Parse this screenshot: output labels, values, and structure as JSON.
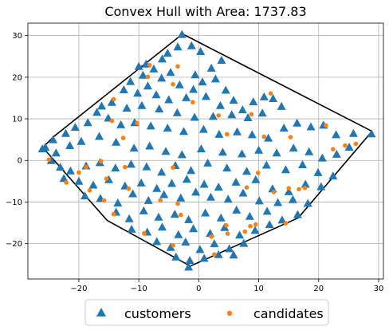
{
  "chart_data": {
    "type": "scatter",
    "title": "Convex Hull with Area: 1737.83",
    "xlabel": "",
    "ylabel": "",
    "xlim": [
      -28.5,
      30.8
    ],
    "ylim": [
      -28.5,
      33.0
    ],
    "xticks": [
      -20,
      -10,
      0,
      10,
      20,
      30
    ],
    "yticks": [
      -20,
      -10,
      0,
      10,
      20,
      30
    ],
    "grid": true,
    "legend_position": "bottom-center",
    "colors": {
      "customers": "#1f77b4",
      "candidates": "#ff7f0e",
      "hull": "#000000",
      "grid": "#b0b0b0"
    },
    "series": [
      {
        "name": "customers",
        "marker": "triangle",
        "points": [
          [
            -2.8,
            30.3
          ],
          [
            -5.2,
            25.8
          ],
          [
            -3.5,
            27.3
          ],
          [
            -1.2,
            27.6
          ],
          [
            0.3,
            26.2
          ],
          [
            -6.1,
            24.4
          ],
          [
            -8.8,
            23.2
          ],
          [
            -10.0,
            22.6
          ],
          [
            -7.5,
            22.0
          ],
          [
            -4.7,
            21.2
          ],
          [
            -9.3,
            20.5
          ],
          [
            -6.2,
            19.8
          ],
          [
            -0.6,
            20.6
          ],
          [
            2.1,
            22.2
          ],
          [
            3.8,
            24.1
          ],
          [
            -11.4,
            19.0
          ],
          [
            -8.5,
            17.9
          ],
          [
            -3.2,
            18.2
          ],
          [
            -0.9,
            17.1
          ],
          [
            0.6,
            18.9
          ],
          [
            2.8,
            19.6
          ],
          [
            4.5,
            16.9
          ],
          [
            -12.5,
            17.0
          ],
          [
            -10.2,
            16.2
          ],
          [
            -7.1,
            15.8
          ],
          [
            -5.0,
            14.6
          ],
          [
            -2.1,
            15.1
          ],
          [
            1.2,
            15.4
          ],
          [
            3.6,
            13.2
          ],
          [
            5.8,
            14.5
          ],
          [
            7.3,
            12.2
          ],
          [
            9.1,
            14.1
          ],
          [
            10.9,
            15.3
          ],
          [
            12.4,
            14.9
          ],
          [
            13.8,
            13.0
          ],
          [
            10.6,
            11.4
          ],
          [
            8.2,
            10.3
          ],
          [
            5.5,
            11.0
          ],
          [
            2.4,
            10.6
          ],
          [
            -0.7,
            10.4
          ],
          [
            -3.6,
            11.5
          ],
          [
            -6.6,
            12.4
          ],
          [
            -9.5,
            13.2
          ],
          [
            -12.0,
            12.6
          ],
          [
            -14.5,
            14.0
          ],
          [
            -16.2,
            13.1
          ],
          [
            -17.0,
            11.6
          ],
          [
            -15.1,
            10.2
          ],
          [
            -13.0,
            8.6
          ],
          [
            -10.7,
            9.1
          ],
          [
            -8.0,
            8.3
          ],
          [
            -5.2,
            7.8
          ],
          [
            -2.5,
            7.0
          ],
          [
            0.8,
            7.5
          ],
          [
            3.4,
            6.3
          ],
          [
            6.4,
            6.9
          ],
          [
            8.9,
            6.2
          ],
          [
            11.6,
            5.4
          ],
          [
            14.2,
            7.8
          ],
          [
            16.4,
            9.0
          ],
          [
            18.7,
            8.1
          ],
          [
            20.8,
            8.5
          ],
          [
            22.9,
            6.2
          ],
          [
            25.8,
            6.5
          ],
          [
            28.8,
            6.4
          ],
          [
            -18.5,
            9.1
          ],
          [
            -20.6,
            8.0
          ],
          [
            -22.2,
            6.5
          ],
          [
            -24.3,
            5.0
          ],
          [
            -25.6,
            3.2
          ],
          [
            -23.8,
            1.8
          ],
          [
            -21.5,
            3.6
          ],
          [
            -19.6,
            4.6
          ],
          [
            -16.6,
            5.8
          ],
          [
            -13.8,
            4.4
          ],
          [
            -10.8,
            3.0
          ],
          [
            -8.2,
            3.5
          ],
          [
            -5.5,
            2.2
          ],
          [
            -2.8,
            1.4
          ],
          [
            0.4,
            2.8
          ],
          [
            4.0,
            2.0
          ],
          [
            7.2,
            1.6
          ],
          [
            10.0,
            2.5
          ],
          [
            13.0,
            1.8
          ],
          [
            15.8,
            3.0
          ],
          [
            18.4,
            2.1
          ],
          [
            20.6,
            0.6
          ],
          [
            23.0,
            1.5
          ],
          [
            25.1,
            3.2
          ],
          [
            -26.1,
            2.8
          ],
          [
            -24.6,
            0.0
          ],
          [
            -23.1,
            -1.6
          ],
          [
            -21.4,
            -2.5
          ],
          [
            -18.8,
            -1.3
          ],
          [
            -16.5,
            -0.5
          ],
          [
            -13.9,
            -1.8
          ],
          [
            -11.3,
            -0.9
          ],
          [
            -8.7,
            -1.5
          ],
          [
            -6.2,
            -2.8
          ],
          [
            -3.9,
            -1.2
          ],
          [
            -1.3,
            -2.4
          ],
          [
            1.5,
            -0.6
          ],
          [
            4.7,
            -1.8
          ],
          [
            8.0,
            -2.6
          ],
          [
            11.3,
            -1.1
          ],
          [
            14.5,
            -2.2
          ],
          [
            17.3,
            -1.0
          ],
          [
            19.9,
            -2.9
          ],
          [
            22.4,
            -3.7
          ],
          [
            -22.5,
            -4.3
          ],
          [
            -20.0,
            -5.0
          ],
          [
            -17.6,
            -5.9
          ],
          [
            -15.0,
            -4.6
          ],
          [
            -12.3,
            -6.1
          ],
          [
            -9.6,
            -5.4
          ],
          [
            -7.0,
            -6.7
          ],
          [
            -4.5,
            -5.5
          ],
          [
            -2.0,
            -4.5
          ],
          [
            0.9,
            -5.7
          ],
          [
            3.3,
            -6.4
          ],
          [
            6.2,
            -5.2
          ],
          [
            9.5,
            -4.6
          ],
          [
            12.3,
            -6.8
          ],
          [
            15.0,
            -7.5
          ],
          [
            17.8,
            -5.7
          ],
          [
            20.4,
            -6.3
          ],
          [
            -19.0,
            -8.5
          ],
          [
            -16.4,
            -9.1
          ],
          [
            -13.5,
            -10.2
          ],
          [
            -11.0,
            -8.0
          ],
          [
            -8.4,
            -9.6
          ],
          [
            -5.8,
            -8.2
          ],
          [
            -3.0,
            -9.0
          ],
          [
            -0.5,
            -7.6
          ],
          [
            2.0,
            -8.8
          ],
          [
            4.9,
            -9.3
          ],
          [
            7.4,
            -7.8
          ],
          [
            10.1,
            -9.7
          ],
          [
            13.2,
            -10.1
          ],
          [
            15.7,
            -9.4
          ],
          [
            18.2,
            -10.3
          ],
          [
            -13.8,
            -12.4
          ],
          [
            -11.6,
            -14.0
          ],
          [
            -9.2,
            -12.1
          ],
          [
            -6.7,
            -13.6
          ],
          [
            -4.0,
            -12.9
          ],
          [
            -1.7,
            -14.2
          ],
          [
            1.1,
            -12.6
          ],
          [
            3.7,
            -13.8
          ],
          [
            6.3,
            -11.9
          ],
          [
            8.5,
            -13.4
          ],
          [
            11.4,
            -12.2
          ],
          [
            13.9,
            -14.3
          ],
          [
            16.5,
            -13.0
          ],
          [
            -11.2,
            -16.5
          ],
          [
            -8.6,
            -17.2
          ],
          [
            -6.1,
            -16.0
          ],
          [
            -3.4,
            -17.8
          ],
          [
            -0.9,
            -16.4
          ],
          [
            1.9,
            -17.5
          ],
          [
            4.3,
            -16.1
          ],
          [
            6.8,
            -17.9
          ],
          [
            9.4,
            -16.8
          ],
          [
            11.8,
            -15.4
          ],
          [
            -7.0,
            -19.5
          ],
          [
            -4.7,
            -20.9
          ],
          [
            -2.2,
            -19.6
          ],
          [
            0.2,
            -21.4
          ],
          [
            2.6,
            -20.0
          ],
          [
            5.1,
            -21.2
          ],
          [
            7.5,
            -19.9
          ],
          [
            -3.8,
            -23.2
          ],
          [
            -1.5,
            -24.0
          ],
          [
            0.9,
            -23.5
          ],
          [
            3.3,
            -22.6
          ],
          [
            5.8,
            -22.7
          ],
          [
            -1.7,
            -25.6
          ]
        ]
      },
      {
        "name": "candidates",
        "marker": "circle",
        "points": [
          [
            -8.2,
            22.9
          ],
          [
            -3.5,
            22.6
          ],
          [
            -1.0,
            14.0
          ],
          [
            -4.3,
            18.3
          ],
          [
            -14.2,
            14.7
          ],
          [
            -14.5,
            9.5
          ],
          [
            -12.6,
            5.4
          ],
          [
            -10.3,
            9.0
          ],
          [
            -8.5,
            20.1
          ],
          [
            3.3,
            10.8
          ],
          [
            4.7,
            6.3
          ],
          [
            8.8,
            11.1
          ],
          [
            10.9,
            5.7
          ],
          [
            12.0,
            16.1
          ],
          [
            15.3,
            5.6
          ],
          [
            21.2,
            8.4
          ],
          [
            22.4,
            2.7
          ],
          [
            24.4,
            3.6
          ],
          [
            26.2,
            4.0
          ],
          [
            -25.0,
            0.2
          ],
          [
            -22.1,
            -5.3
          ],
          [
            -20.0,
            -2.9
          ],
          [
            -18.8,
            -1.6
          ],
          [
            -18.2,
            -7.2
          ],
          [
            -16.3,
            -0.2
          ],
          [
            -15.4,
            -4.4
          ],
          [
            -12.3,
            -1.6
          ],
          [
            -11.7,
            -6.8
          ],
          [
            -6.4,
            -9.6
          ],
          [
            -4.3,
            -1.7
          ],
          [
            -3.5,
            -10.4
          ],
          [
            -15.8,
            -9.6
          ],
          [
            -14.2,
            -12.9
          ],
          [
            -9.1,
            -17.5
          ],
          [
            -4.3,
            -20.4
          ],
          [
            -3.0,
            -13.1
          ],
          [
            2.1,
            -18.3
          ],
          [
            4.6,
            -15.6
          ],
          [
            4.8,
            -17.6
          ],
          [
            7.7,
            -17.1
          ],
          [
            8.0,
            -6.5
          ],
          [
            8.6,
            -15.8
          ],
          [
            9.5,
            -15.4
          ],
          [
            9.9,
            -3.0
          ],
          [
            12.5,
            -7.6
          ],
          [
            14.5,
            -15.1
          ],
          [
            15.0,
            -6.7
          ],
          [
            16.7,
            -6.9
          ],
          [
            17.7,
            -6.6
          ],
          [
            2.6,
            -22.6
          ]
        ]
      }
    ],
    "hull": [
      [
        -2.7,
        30.4
      ],
      [
        28.9,
        7.0
      ],
      [
        16.6,
        -13.8
      ],
      [
        -1.4,
        -25.4
      ],
      [
        -15.3,
        -14.4
      ],
      [
        -26.0,
        3.1
      ],
      [
        -24.3,
        5.6
      ],
      [
        -2.7,
        30.4
      ]
    ]
  },
  "legend": {
    "customers_label": "customers",
    "candidates_label": "candidates"
  }
}
